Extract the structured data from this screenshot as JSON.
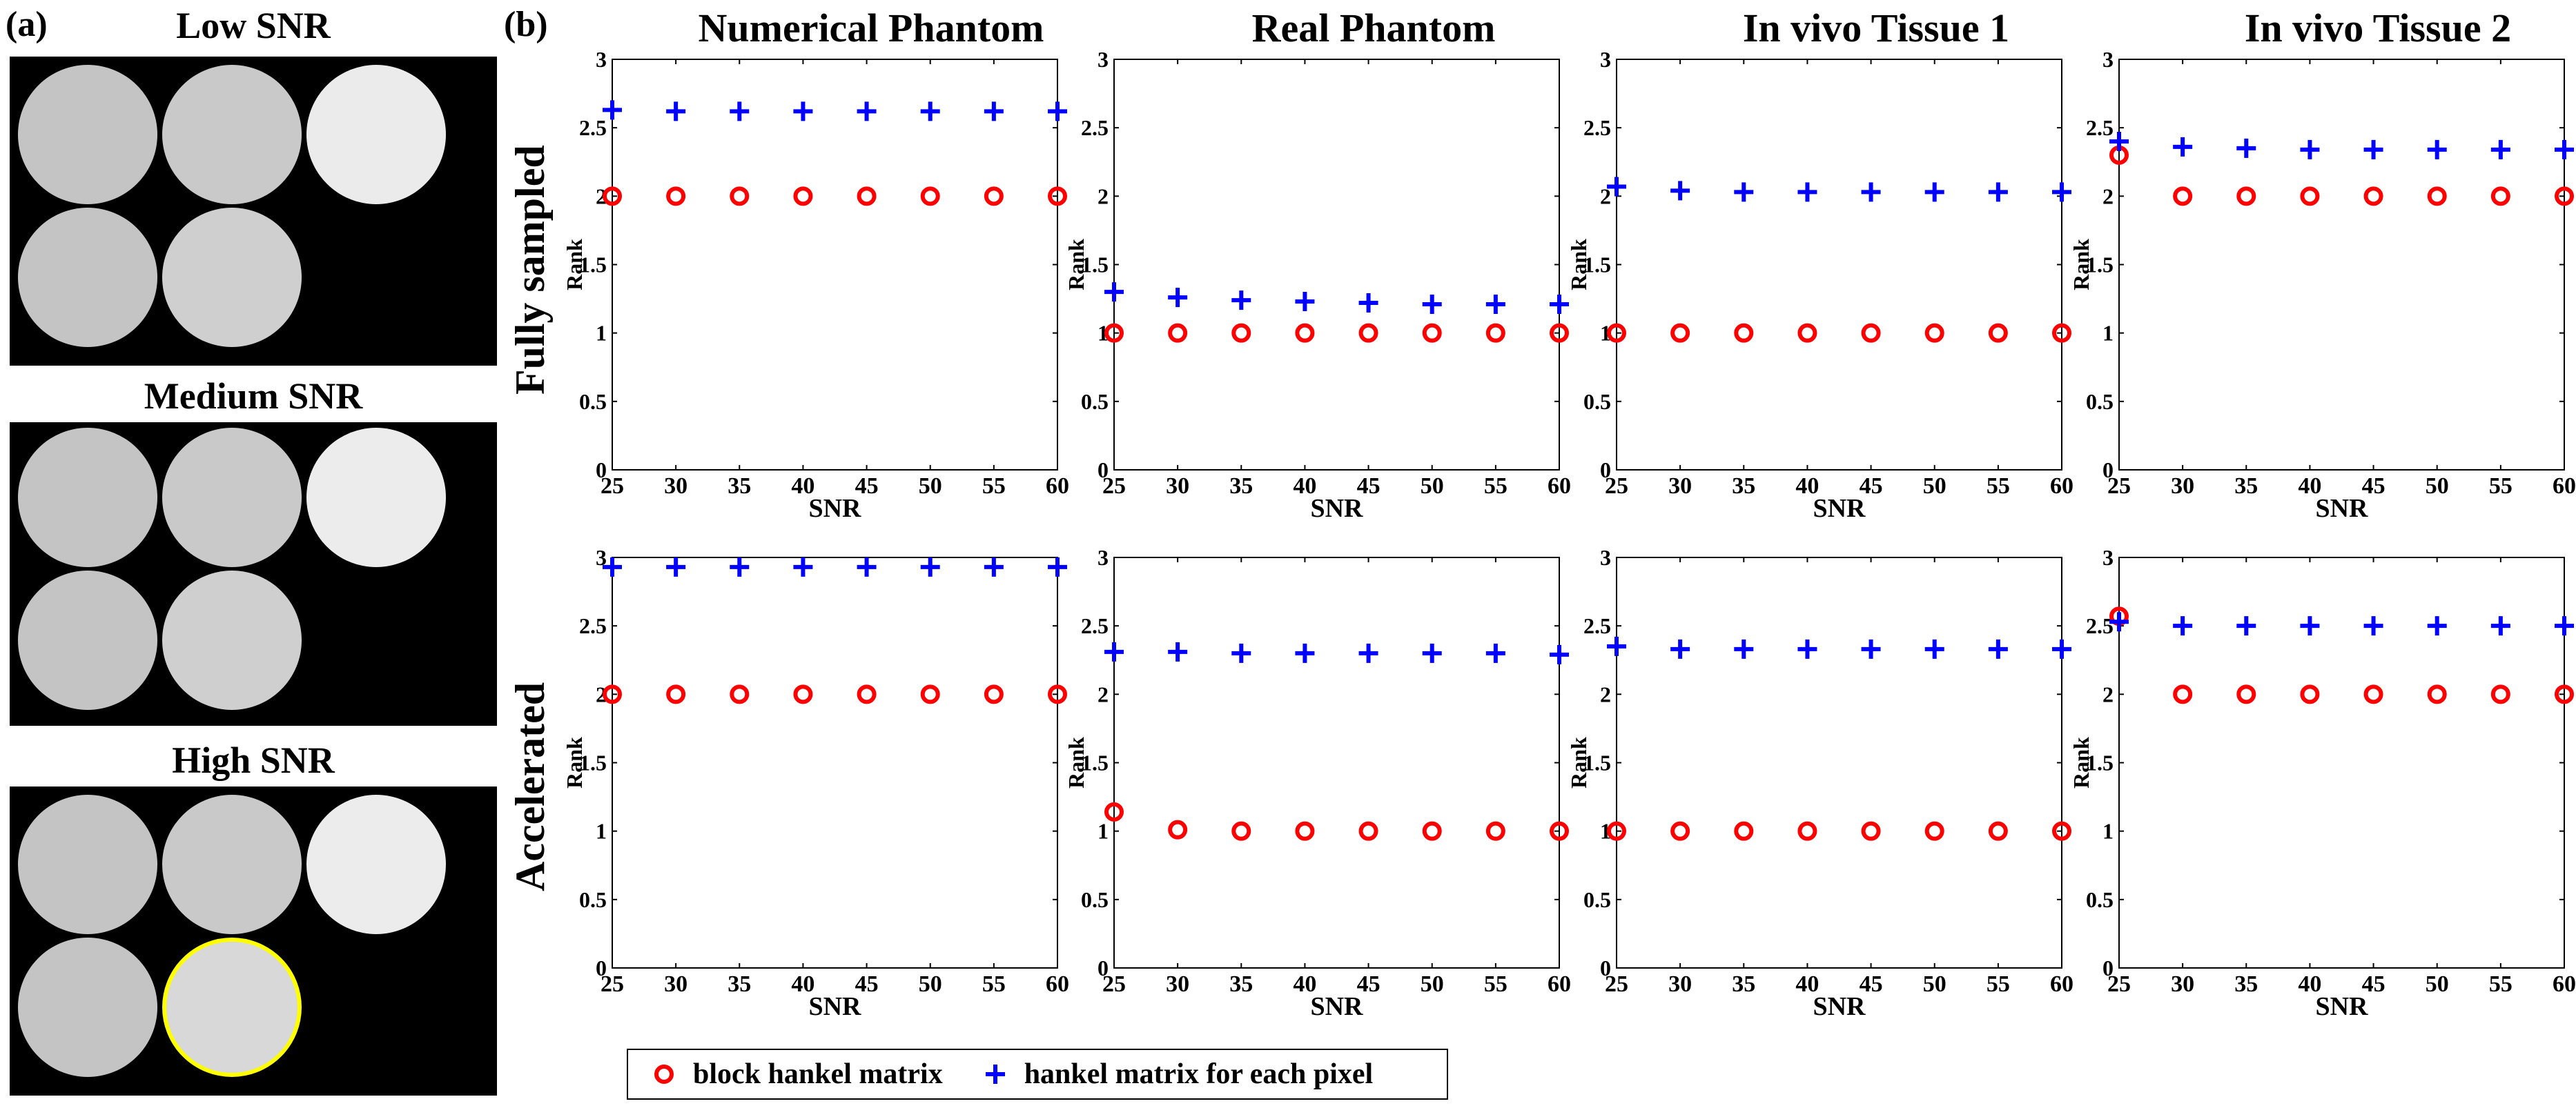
{
  "figure": {
    "panel_a_label": "(a)",
    "panel_b_label": "(b)"
  },
  "panel_a": {
    "images": [
      {
        "title": "Low SNR",
        "disk_colors": [
          "#c4c4c4",
          "#c9c9c9",
          "#ebebeb",
          "#c4c4c4",
          "#cfcfcf"
        ],
        "highlight": false
      },
      {
        "title": "Medium SNR",
        "disk_colors": [
          "#c4c4c4",
          "#c9c9c9",
          "#ececec",
          "#c4c4c4",
          "#cfcfcf"
        ],
        "highlight": false
      },
      {
        "title": "High SNR",
        "disk_colors": [
          "#c4c4c4",
          "#c9c9c9",
          "#ececec",
          "#c4c4c4",
          "#d8d8d8"
        ],
        "highlight": true,
        "highlight_color": "#ffff00"
      }
    ]
  },
  "panel_b": {
    "column_titles": [
      "Numerical Phantom",
      "Real Phantom",
      "In vivo Tissue 1",
      "In vivo Tissue 2"
    ],
    "row_labels": [
      "Fully sampled",
      "Accelerated"
    ]
  },
  "legend": {
    "block_label": "block hankel matrix",
    "pixel_label": "hankel matrix for each pixel",
    "block_color": "#ff0000",
    "pixel_color": "#0000ff"
  },
  "chart_data": [
    {
      "type": "scatter",
      "row": 0,
      "col": 0,
      "xlabel": "SNR",
      "ylabel": "Rank",
      "xlim": [
        25,
        60
      ],
      "ylim": [
        0,
        3
      ],
      "xticks": [
        "25",
        "30",
        "35",
        "40",
        "45",
        "50",
        "55",
        "60"
      ],
      "yticks": [
        "0",
        "0.5",
        "1",
        "1.5",
        "2",
        "2.5",
        "3"
      ],
      "series": [
        {
          "name": "block hankel matrix",
          "marker": "o",
          "x": [
            25,
            30,
            35,
            40,
            45,
            50,
            55,
            60
          ],
          "y": [
            2,
            2,
            2,
            2,
            2,
            2,
            2,
            2
          ]
        },
        {
          "name": "hankel matrix for each pixel",
          "marker": "+",
          "x": [
            25,
            30,
            35,
            40,
            45,
            50,
            55,
            60
          ],
          "y": [
            2.63,
            2.62,
            2.62,
            2.62,
            2.62,
            2.62,
            2.62,
            2.62
          ]
        }
      ]
    },
    {
      "type": "scatter",
      "row": 0,
      "col": 1,
      "xlabel": "SNR",
      "ylabel": "Rank",
      "xlim": [
        25,
        60
      ],
      "ylim": [
        0,
        3
      ],
      "xticks": [
        "25",
        "30",
        "35",
        "40",
        "45",
        "50",
        "55",
        "60"
      ],
      "yticks": [
        "0",
        "0.5",
        "1",
        "1.5",
        "2",
        "2.5",
        "3"
      ],
      "series": [
        {
          "name": "block hankel matrix",
          "marker": "o",
          "x": [
            25,
            30,
            35,
            40,
            45,
            50,
            55,
            60
          ],
          "y": [
            1,
            1,
            1,
            1,
            1,
            1,
            1,
            1
          ]
        },
        {
          "name": "hankel matrix for each pixel",
          "marker": "+",
          "x": [
            25,
            30,
            35,
            40,
            45,
            50,
            55,
            60
          ],
          "y": [
            1.3,
            1.26,
            1.24,
            1.23,
            1.22,
            1.21,
            1.21,
            1.21
          ]
        }
      ]
    },
    {
      "type": "scatter",
      "row": 0,
      "col": 2,
      "xlabel": "SNR",
      "ylabel": "Rank",
      "xlim": [
        25,
        60
      ],
      "ylim": [
        0,
        3
      ],
      "xticks": [
        "25",
        "30",
        "35",
        "40",
        "45",
        "50",
        "55",
        "60"
      ],
      "yticks": [
        "0",
        "0.5",
        "1",
        "1.5",
        "2",
        "2.5",
        "3"
      ],
      "series": [
        {
          "name": "block hankel matrix",
          "marker": "o",
          "x": [
            25,
            30,
            35,
            40,
            45,
            50,
            55,
            60
          ],
          "y": [
            1,
            1,
            1,
            1,
            1,
            1,
            1,
            1
          ]
        },
        {
          "name": "hankel matrix for each pixel",
          "marker": "+",
          "x": [
            25,
            30,
            35,
            40,
            45,
            50,
            55,
            60
          ],
          "y": [
            2.07,
            2.04,
            2.03,
            2.03,
            2.03,
            2.03,
            2.03,
            2.03
          ]
        }
      ]
    },
    {
      "type": "scatter",
      "row": 0,
      "col": 3,
      "xlabel": "SNR",
      "ylabel": "Rank",
      "xlim": [
        25,
        60
      ],
      "ylim": [
        0,
        3
      ],
      "xticks": [
        "25",
        "30",
        "35",
        "40",
        "45",
        "50",
        "55",
        "60"
      ],
      "yticks": [
        "0",
        "0.5",
        "1",
        "1.5",
        "2",
        "2.5",
        "3"
      ],
      "series": [
        {
          "name": "block hankel matrix",
          "marker": "o",
          "x": [
            25,
            30,
            35,
            40,
            45,
            50,
            55,
            60
          ],
          "y": [
            2.3,
            2,
            2,
            2,
            2,
            2,
            2,
            2
          ]
        },
        {
          "name": "hankel matrix for each pixel",
          "marker": "+",
          "x": [
            25,
            30,
            35,
            40,
            45,
            50,
            55,
            60
          ],
          "y": [
            2.4,
            2.36,
            2.35,
            2.34,
            2.34,
            2.34,
            2.34,
            2.34
          ]
        }
      ]
    },
    {
      "type": "scatter",
      "row": 1,
      "col": 0,
      "xlabel": "SNR",
      "ylabel": "Rank",
      "xlim": [
        25,
        60
      ],
      "ylim": [
        0,
        3
      ],
      "xticks": [
        "25",
        "30",
        "35",
        "40",
        "45",
        "50",
        "55",
        "60"
      ],
      "yticks": [
        "0",
        "0.5",
        "1",
        "1.5",
        "2",
        "2.5",
        "3"
      ],
      "series": [
        {
          "name": "block hankel matrix",
          "marker": "o",
          "x": [
            25,
            30,
            35,
            40,
            45,
            50,
            55,
            60
          ],
          "y": [
            2,
            2,
            2,
            2,
            2,
            2,
            2,
            2
          ]
        },
        {
          "name": "hankel matrix for each pixel",
          "marker": "+",
          "x": [
            25,
            30,
            35,
            40,
            45,
            50,
            55,
            60
          ],
          "y": [
            2.93,
            2.93,
            2.93,
            2.93,
            2.93,
            2.93,
            2.93,
            2.93
          ]
        }
      ]
    },
    {
      "type": "scatter",
      "row": 1,
      "col": 1,
      "xlabel": "SNR",
      "ylabel": "Rank",
      "xlim": [
        25,
        60
      ],
      "ylim": [
        0,
        3
      ],
      "xticks": [
        "25",
        "30",
        "35",
        "40",
        "45",
        "50",
        "55",
        "60"
      ],
      "yticks": [
        "0",
        "0.5",
        "1",
        "1.5",
        "2",
        "2.5",
        "3"
      ],
      "series": [
        {
          "name": "block hankel matrix",
          "marker": "o",
          "x": [
            25,
            30,
            35,
            40,
            45,
            50,
            55,
            60
          ],
          "y": [
            1.14,
            1.01,
            1,
            1,
            1,
            1,
            1,
            1
          ]
        },
        {
          "name": "hankel matrix for each pixel",
          "marker": "+",
          "x": [
            25,
            30,
            35,
            40,
            45,
            50,
            55,
            60
          ],
          "y": [
            2.31,
            2.31,
            2.3,
            2.3,
            2.3,
            2.3,
            2.3,
            2.29
          ]
        }
      ]
    },
    {
      "type": "scatter",
      "row": 1,
      "col": 2,
      "xlabel": "SNR",
      "ylabel": "Rank",
      "xlim": [
        25,
        60
      ],
      "ylim": [
        0,
        3
      ],
      "xticks": [
        "25",
        "30",
        "35",
        "40",
        "45",
        "50",
        "55",
        "60"
      ],
      "yticks": [
        "0",
        "0.5",
        "1",
        "1.5",
        "2",
        "2.5",
        "3"
      ],
      "series": [
        {
          "name": "block hankel matrix",
          "marker": "o",
          "x": [
            25,
            30,
            35,
            40,
            45,
            50,
            55,
            60
          ],
          "y": [
            1,
            1,
            1,
            1,
            1,
            1,
            1,
            1
          ]
        },
        {
          "name": "hankel matrix for each pixel",
          "marker": "+",
          "x": [
            25,
            30,
            35,
            40,
            45,
            50,
            55,
            60
          ],
          "y": [
            2.35,
            2.33,
            2.33,
            2.33,
            2.33,
            2.33,
            2.33,
            2.33
          ]
        }
      ]
    },
    {
      "type": "scatter",
      "row": 1,
      "col": 3,
      "xlabel": "SNR",
      "ylabel": "Rank",
      "xlim": [
        25,
        60
      ],
      "ylim": [
        0,
        3
      ],
      "xticks": [
        "25",
        "30",
        "35",
        "40",
        "45",
        "50",
        "55",
        "60"
      ],
      "yticks": [
        "0",
        "0.5",
        "1",
        "1.5",
        "2",
        "2.5",
        "3"
      ],
      "series": [
        {
          "name": "block hankel matrix",
          "marker": "o",
          "x": [
            25,
            30,
            35,
            40,
            45,
            50,
            55,
            60
          ],
          "y": [
            2.57,
            2,
            2,
            2,
            2,
            2,
            2,
            2
          ]
        },
        {
          "name": "hankel matrix for each pixel",
          "marker": "+",
          "x": [
            25,
            30,
            35,
            40,
            45,
            50,
            55,
            60
          ],
          "y": [
            2.53,
            2.5,
            2.5,
            2.5,
            2.5,
            2.5,
            2.5,
            2.5
          ]
        }
      ]
    }
  ]
}
